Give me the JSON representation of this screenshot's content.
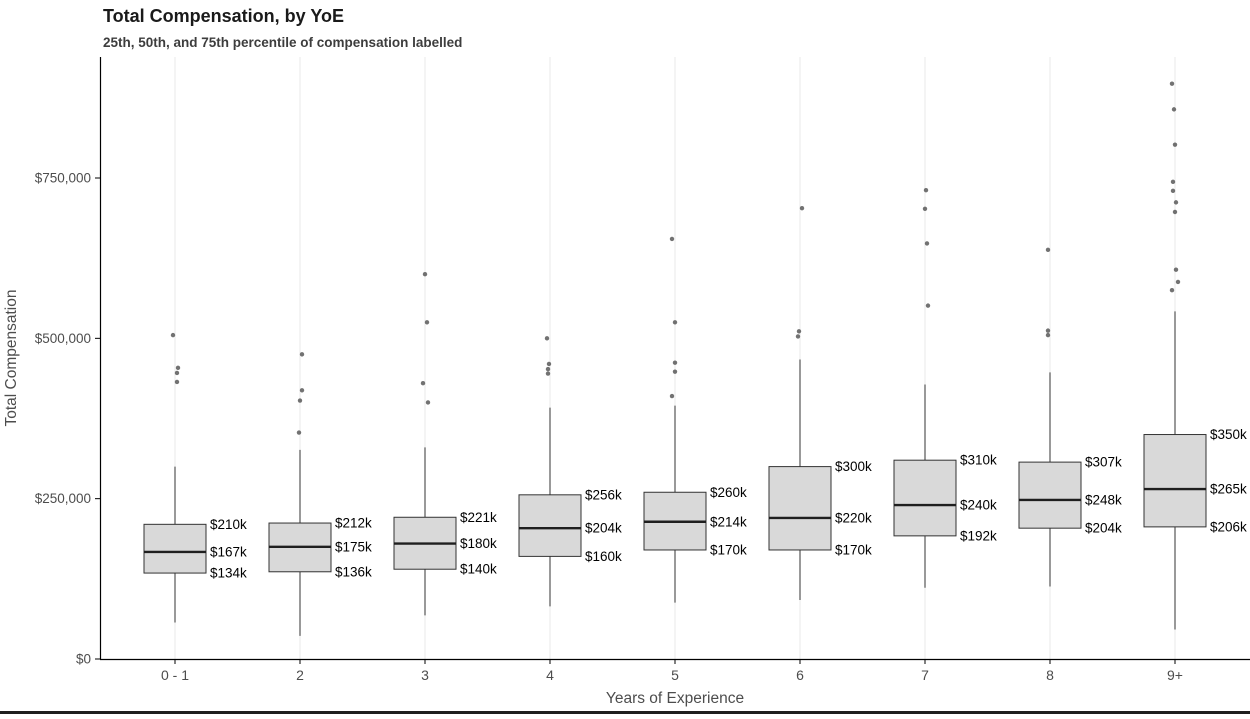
{
  "chart_data": {
    "type": "boxplot",
    "title": "Total Compensation, by YoE",
    "subtitle": "25th, 50th, and 75th percentile of compensation labelled",
    "xlabel": "Years of Experience",
    "ylabel": "Total Compensation",
    "y_unit": "USD thousands",
    "ylim": [
      0,
      945
    ],
    "grid": "vertical-major-only",
    "legend": "none",
    "y_ticks": [
      {
        "value": 0,
        "label": "$0"
      },
      {
        "value": 250,
        "label": "$250,000"
      },
      {
        "value": 500,
        "label": "$500,000"
      },
      {
        "value": 750,
        "label": "$750,000"
      }
    ],
    "categories": [
      "0 - 1",
      "2",
      "3",
      "4",
      "5",
      "6",
      "7",
      "8",
      "9+"
    ],
    "boxes": [
      {
        "category": "0 - 1",
        "q1": 134,
        "median": 167,
        "q3": 210,
        "whisker_low": 57,
        "whisker_high": 300,
        "outliers": [
          432,
          446,
          454,
          505
        ],
        "labels": {
          "q3": "$210k",
          "median": "$167k",
          "q1": "$134k"
        }
      },
      {
        "category": "2",
        "q1": 136,
        "median": 175,
        "q3": 212,
        "whisker_low": 36,
        "whisker_high": 326,
        "outliers": [
          353,
          403,
          419,
          475
        ],
        "labels": {
          "q3": "$212k",
          "median": "$175k",
          "q1": "$136k"
        }
      },
      {
        "category": "3",
        "q1": 140,
        "median": 180,
        "q3": 221,
        "whisker_low": 68,
        "whisker_high": 330,
        "outliers": [
          400,
          430,
          525,
          600
        ],
        "labels": {
          "q3": "$221k",
          "median": "$180k",
          "q1": "$140k"
        }
      },
      {
        "category": "4",
        "q1": 160,
        "median": 204,
        "q3": 256,
        "whisker_low": 82,
        "whisker_high": 392,
        "outliers": [
          445,
          452,
          460,
          500
        ],
        "labels": {
          "q3": "$256k",
          "median": "$204k",
          "q1": "$160k"
        }
      },
      {
        "category": "5",
        "q1": 170,
        "median": 214,
        "q3": 260,
        "whisker_low": 88,
        "whisker_high": 395,
        "outliers": [
          410,
          448,
          462,
          525,
          655
        ],
        "labels": {
          "q3": "$260k",
          "median": "$214k",
          "q1": "$170k"
        }
      },
      {
        "category": "6",
        "q1": 170,
        "median": 220,
        "q3": 300,
        "whisker_low": 92,
        "whisker_high": 467,
        "outliers": [
          503,
          511,
          703
        ],
        "labels": {
          "q3": "$300k",
          "median": "$220k",
          "q1": "$170k"
        }
      },
      {
        "category": "7",
        "q1": 192,
        "median": 240,
        "q3": 310,
        "whisker_low": 111,
        "whisker_high": 428,
        "outliers": [
          551,
          648,
          702,
          731
        ],
        "labels": {
          "q3": "$310k",
          "median": "$240k",
          "q1": "$192k"
        }
      },
      {
        "category": "8",
        "q1": 204,
        "median": 248,
        "q3": 307,
        "whisker_low": 113,
        "whisker_high": 447,
        "outliers": [
          505,
          512,
          638
        ],
        "labels": {
          "q3": "$307k",
          "median": "$248k",
          "q1": "$204k"
        }
      },
      {
        "category": "9+",
        "q1": 206,
        "median": 265,
        "q3": 350,
        "whisker_low": 46,
        "whisker_high": 542,
        "outliers": [
          575,
          588,
          607,
          697,
          712,
          730,
          744,
          802,
          857,
          897
        ],
        "labels": {
          "q3": "$350k",
          "median": "$265k",
          "q1": "$206k"
        }
      }
    ],
    "colors": {
      "box_fill": "#d9d9d9",
      "box_stroke": "#333333",
      "median_line": "#1f1f1f",
      "outlier": "#595959",
      "gridline": "#e9e9e9",
      "axis_line": "#000000",
      "axis_text": "#4d4d4d",
      "label_text": "#000000",
      "title_text": "#1a1a1a"
    }
  }
}
